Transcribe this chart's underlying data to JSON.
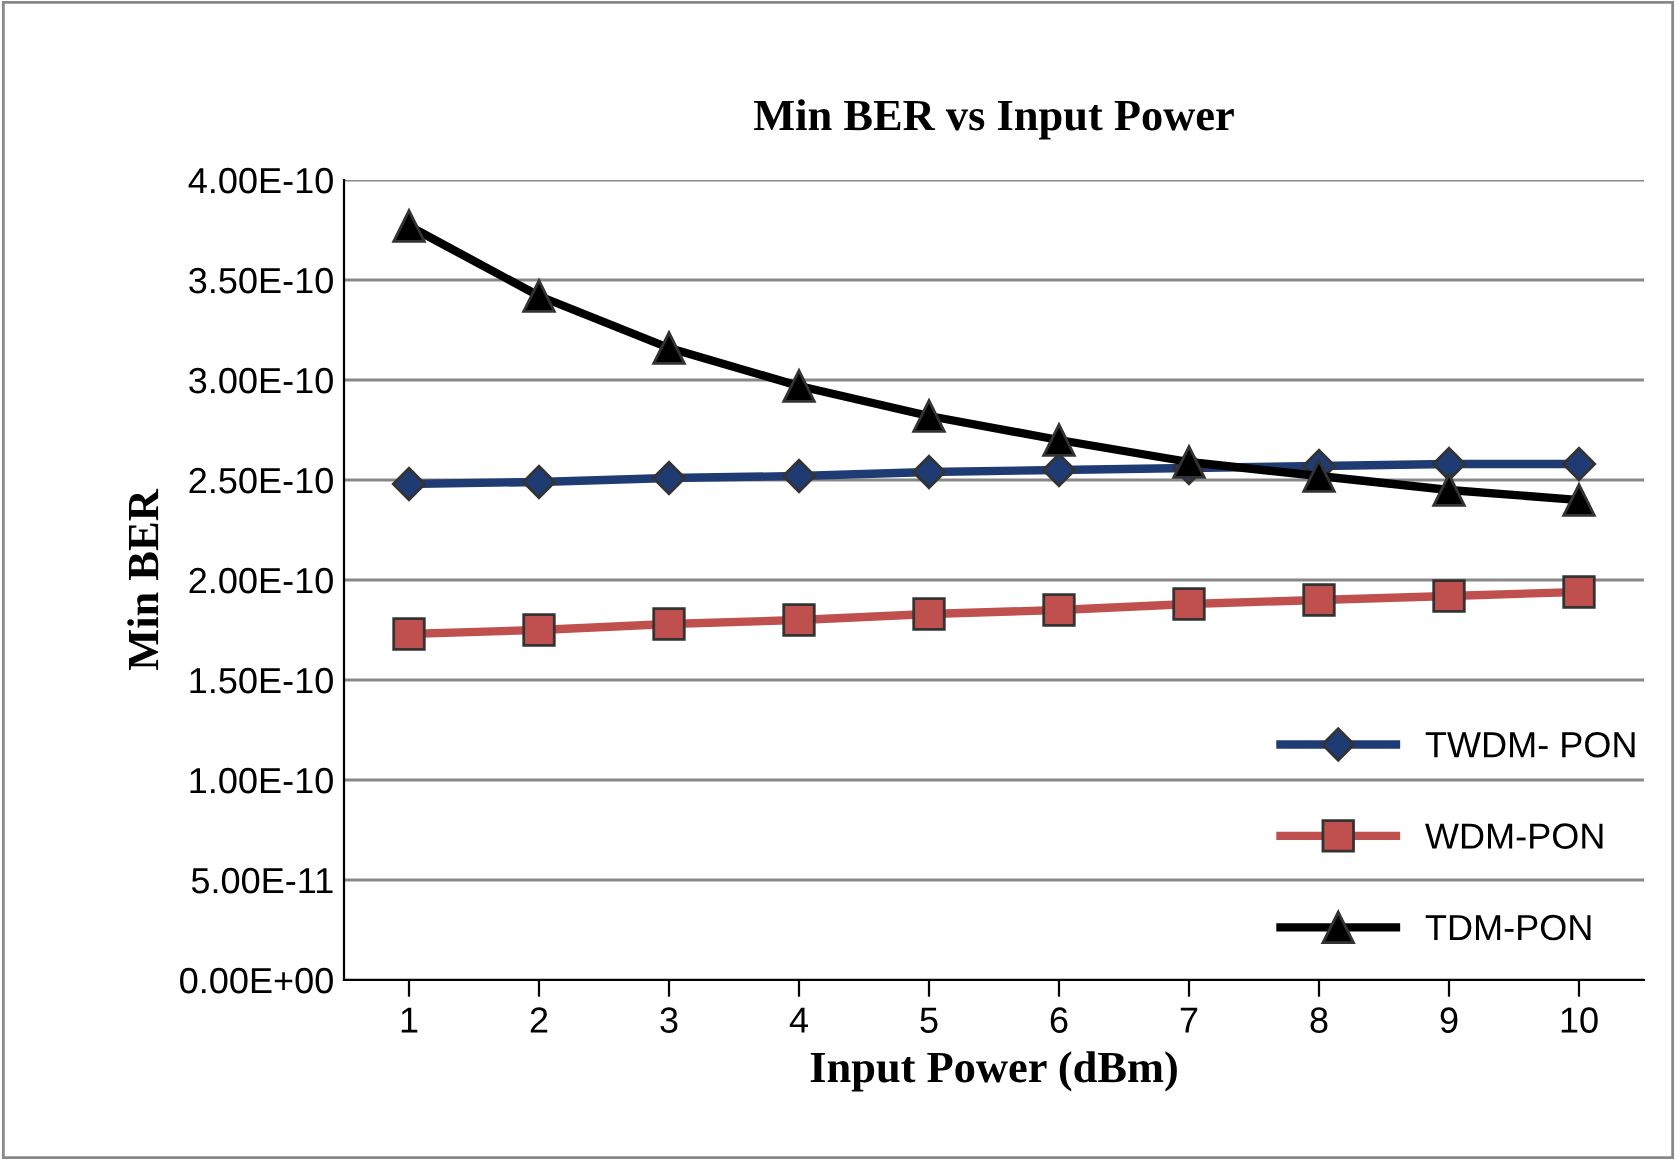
{
  "chart_data": {
    "type": "line",
    "title": "Min BER vs Input Power",
    "xlabel": "Input Power (dBm)",
    "ylabel": "Min BER",
    "categories": [
      "1",
      "2",
      "3",
      "4",
      "5",
      "6",
      "7",
      "8",
      "9",
      "10"
    ],
    "series": [
      {
        "name": "TWDM- PON",
        "color": "#1f3b73",
        "marker": "diamond",
        "values": [
          2.48e-10,
          2.49e-10,
          2.51e-10,
          2.52e-10,
          2.54e-10,
          2.55e-10,
          2.56e-10,
          2.57e-10,
          2.58e-10,
          2.58e-10
        ]
      },
      {
        "name": "WDM-PON",
        "color": "#c0504d",
        "marker": "square",
        "values": [
          1.73e-10,
          1.75e-10,
          1.78e-10,
          1.8e-10,
          1.83e-10,
          1.85e-10,
          1.88e-10,
          1.9e-10,
          1.92e-10,
          1.94e-10
        ]
      },
      {
        "name": "TDM-PON",
        "color": "#000000",
        "marker": "triangle",
        "values": [
          3.77e-10,
          3.42e-10,
          3.16e-10,
          2.97e-10,
          2.82e-10,
          2.7e-10,
          2.59e-10,
          2.52e-10,
          2.45e-10,
          2.4e-10
        ]
      }
    ],
    "ylim": [
      0,
      4e-10
    ],
    "yticks": [
      {
        "value": 0,
        "label": "0.00E+00"
      },
      {
        "value": 5e-11,
        "label": "5.00E-11"
      },
      {
        "value": 1e-10,
        "label": "1.00E-10"
      },
      {
        "value": 1.5e-10,
        "label": "1.50E-10"
      },
      {
        "value": 2e-10,
        "label": "2.00E-10"
      },
      {
        "value": 2.5e-10,
        "label": "2.50E-10"
      },
      {
        "value": 3e-10,
        "label": "3.00E-10"
      },
      {
        "value": 3.5e-10,
        "label": "3.50E-10"
      },
      {
        "value": 4e-10,
        "label": "4.00E-10"
      }
    ],
    "grid": "y",
    "legend": "bottom right",
    "line_style": "solid"
  }
}
